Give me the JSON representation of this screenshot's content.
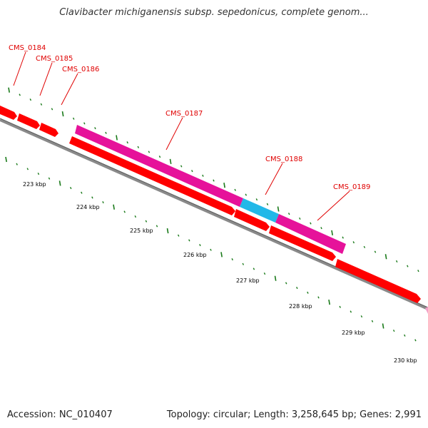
{
  "title": "Clavibacter michiganensis subsp. sepedonicus, complete genom...",
  "footer": {
    "accession": "Accession: NC_010407",
    "summary": "Topology: circular; Length: 3,258,645 bp; Genes: 2,991"
  },
  "colors": {
    "cds_red": "#ff0000",
    "cds_magenta": "#e6129a",
    "cds_cyan": "#22b8e8",
    "backbone": "#888888",
    "tick_green": "#1a7a1a",
    "label_red": "#e00000"
  },
  "kbp_labels": [
    "223 kbp",
    "224 kbp",
    "225 kbp",
    "226 kbp",
    "227 kbp",
    "228 kbp",
    "229 kbp",
    "230 kbp"
  ],
  "genes": [
    {
      "name": "CMS_0184"
    },
    {
      "name": "CMS_0185"
    },
    {
      "name": "CMS_0186"
    },
    {
      "name": "CMS_0187"
    },
    {
      "name": "CMS_0188"
    },
    {
      "name": "CMS_0189"
    }
  ]
}
